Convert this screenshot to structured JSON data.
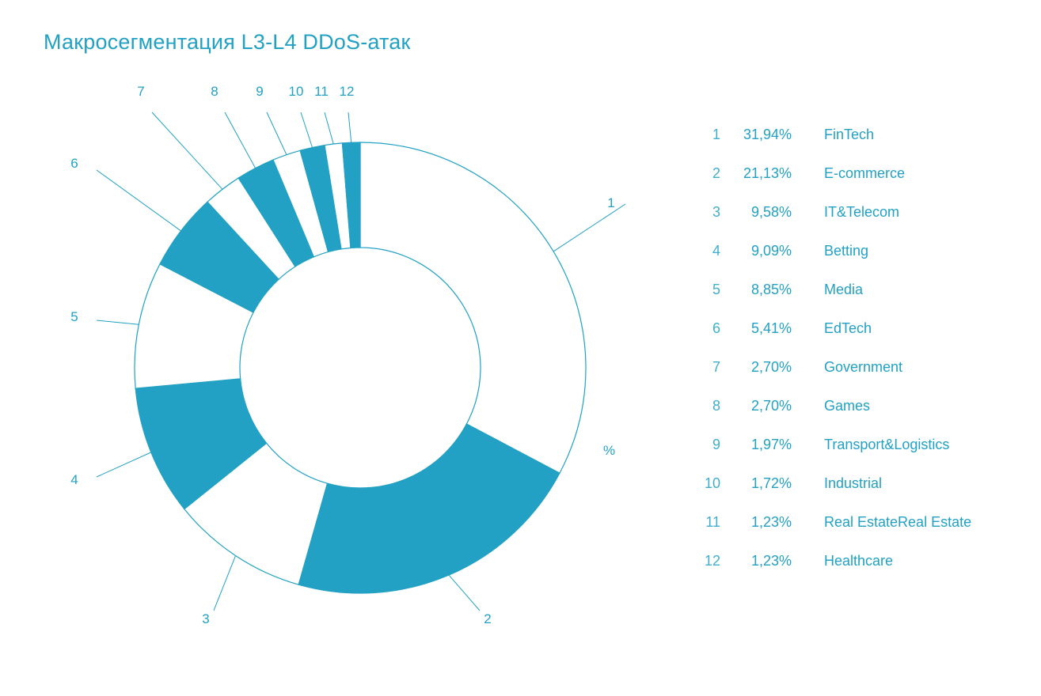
{
  "title": "Макросегментация L3-L4 DDoS-атак",
  "unit_label": "%",
  "colors": {
    "accent": "#22a1c4",
    "fill_alt": "#ffffff",
    "stroke": "#22a1c4"
  },
  "chart_data": {
    "type": "donut",
    "title": "Макросегментация L3-L4 DDoS-атак",
    "unit": "%",
    "series": [
      {
        "num": "1",
        "value_label": "31,94%",
        "value": 31.94,
        "name": "FinTech"
      },
      {
        "num": "2",
        "value_label": "21,13%",
        "value": 21.13,
        "name": "E-commerce"
      },
      {
        "num": "3",
        "value_label": "9,58%",
        "value": 9.58,
        "name": "IT&Telecom"
      },
      {
        "num": "4",
        "value_label": "9,09%",
        "value": 9.09,
        "name": "Betting"
      },
      {
        "num": "5",
        "value_label": "8,85%",
        "value": 8.85,
        "name": "Media"
      },
      {
        "num": "6",
        "value_label": "5,41%",
        "value": 5.41,
        "name": "EdTech"
      },
      {
        "num": "7",
        "value_label": "2,70%",
        "value": 2.7,
        "name": "Government"
      },
      {
        "num": "8",
        "value_label": "2,70%",
        "value": 2.7,
        "name": "Games"
      },
      {
        "num": "9",
        "value_label": "1,97%",
        "value": 1.97,
        "name": "Transport&Logistics"
      },
      {
        "num": "10",
        "value_label": "1,72%",
        "value": 1.72,
        "name": "Industrial"
      },
      {
        "num": "11",
        "value_label": "1,23%",
        "value": 1.23,
        "name": "Real EstateReal Estate"
      },
      {
        "num": "12",
        "value_label": "1,23%",
        "value": 1.23,
        "name": "Healthcare"
      }
    ]
  }
}
